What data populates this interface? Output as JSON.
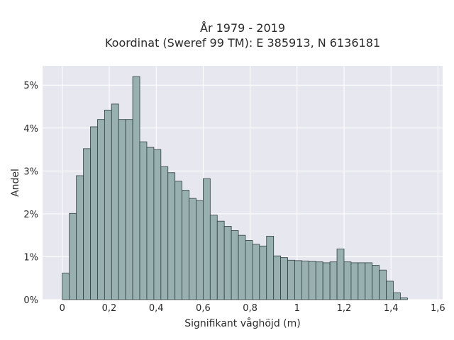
{
  "chart_data": {
    "type": "bar",
    "title_line1": "År 1979 - 2019",
    "title_line2": "Koordinat (Sweref 99 TM): E 385913, N 6136181",
    "xlabel": "Signifikant våghöjd (m)",
    "ylabel": "Andel",
    "xlim": [
      -0.084,
      1.62
    ],
    "ylim": [
      0,
      5.45
    ],
    "bin_width": 0.03,
    "bin_start": 0,
    "values": [
      0.62,
      2.01,
      2.89,
      3.52,
      4.03,
      4.2,
      4.42,
      4.56,
      4.2,
      4.2,
      5.2,
      3.68,
      3.55,
      3.5,
      3.1,
      2.96,
      2.76,
      2.55,
      2.36,
      2.31,
      2.82,
      1.97,
      1.83,
      1.71,
      1.61,
      1.5,
      1.38,
      1.29,
      1.25,
      1.48,
      1.02,
      0.98,
      0.92,
      0.91,
      0.9,
      0.89,
      0.88,
      0.86,
      0.88,
      1.18,
      0.88,
      0.86,
      0.86,
      0.86,
      0.8,
      0.69,
      0.43,
      0.16,
      0.04
    ],
    "x_ticks": [
      0,
      0.2,
      0.4,
      0.6,
      0.8,
      1.0,
      1.2,
      1.4,
      1.6
    ],
    "x_tick_labels": [
      "0",
      "0,2",
      "0,4",
      "0,6",
      "0,8",
      "1",
      "1,2",
      "1,4",
      "1,6"
    ],
    "y_ticks": [
      0,
      1,
      2,
      3,
      4,
      5
    ],
    "y_tick_labels": [
      "0%",
      "1%",
      "2%",
      "3%",
      "4%",
      "5%"
    ],
    "grid": true,
    "colors": {
      "bar_fill": "#98b0b0",
      "bar_stroke": "#2f3f3f",
      "plot_bg": "#e7e7f0",
      "grid": "#ffffff"
    }
  }
}
